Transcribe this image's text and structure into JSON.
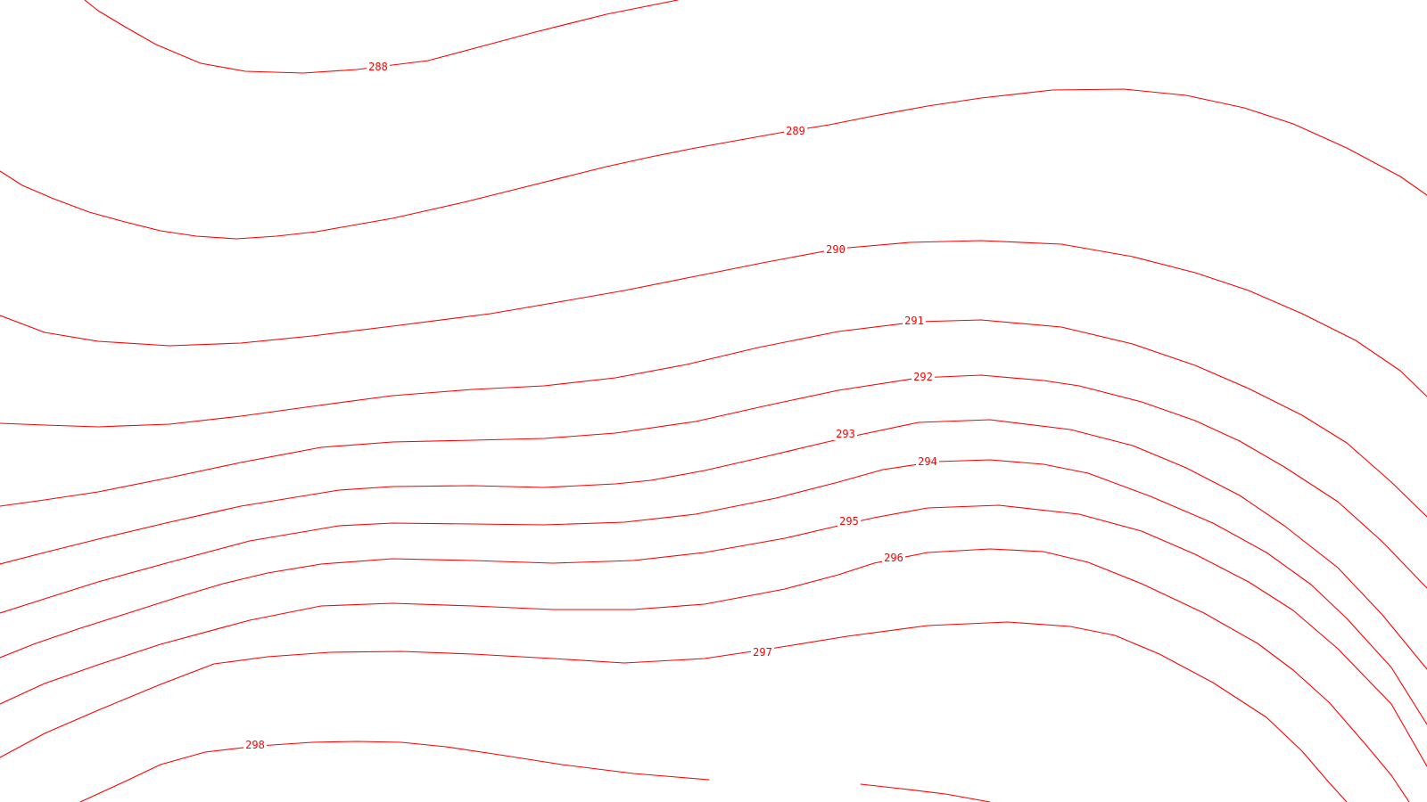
{
  "map": {
    "type": "contour-map",
    "background_color": "#ffffff",
    "contour_color": "#ff0000",
    "contours": [
      {
        "level": "288",
        "label": "288"
      },
      {
        "level": "289",
        "label": "289"
      },
      {
        "level": "290",
        "label": "290"
      },
      {
        "level": "291",
        "label": "291"
      },
      {
        "level": "292",
        "label": "292"
      },
      {
        "level": "293",
        "label": "293"
      },
      {
        "level": "294",
        "label": "294"
      },
      {
        "level": "295",
        "label": "295"
      },
      {
        "level": "296",
        "label": "296"
      },
      {
        "level": "297",
        "label": "297"
      },
      {
        "level": "298",
        "label": "298"
      }
    ]
  }
}
